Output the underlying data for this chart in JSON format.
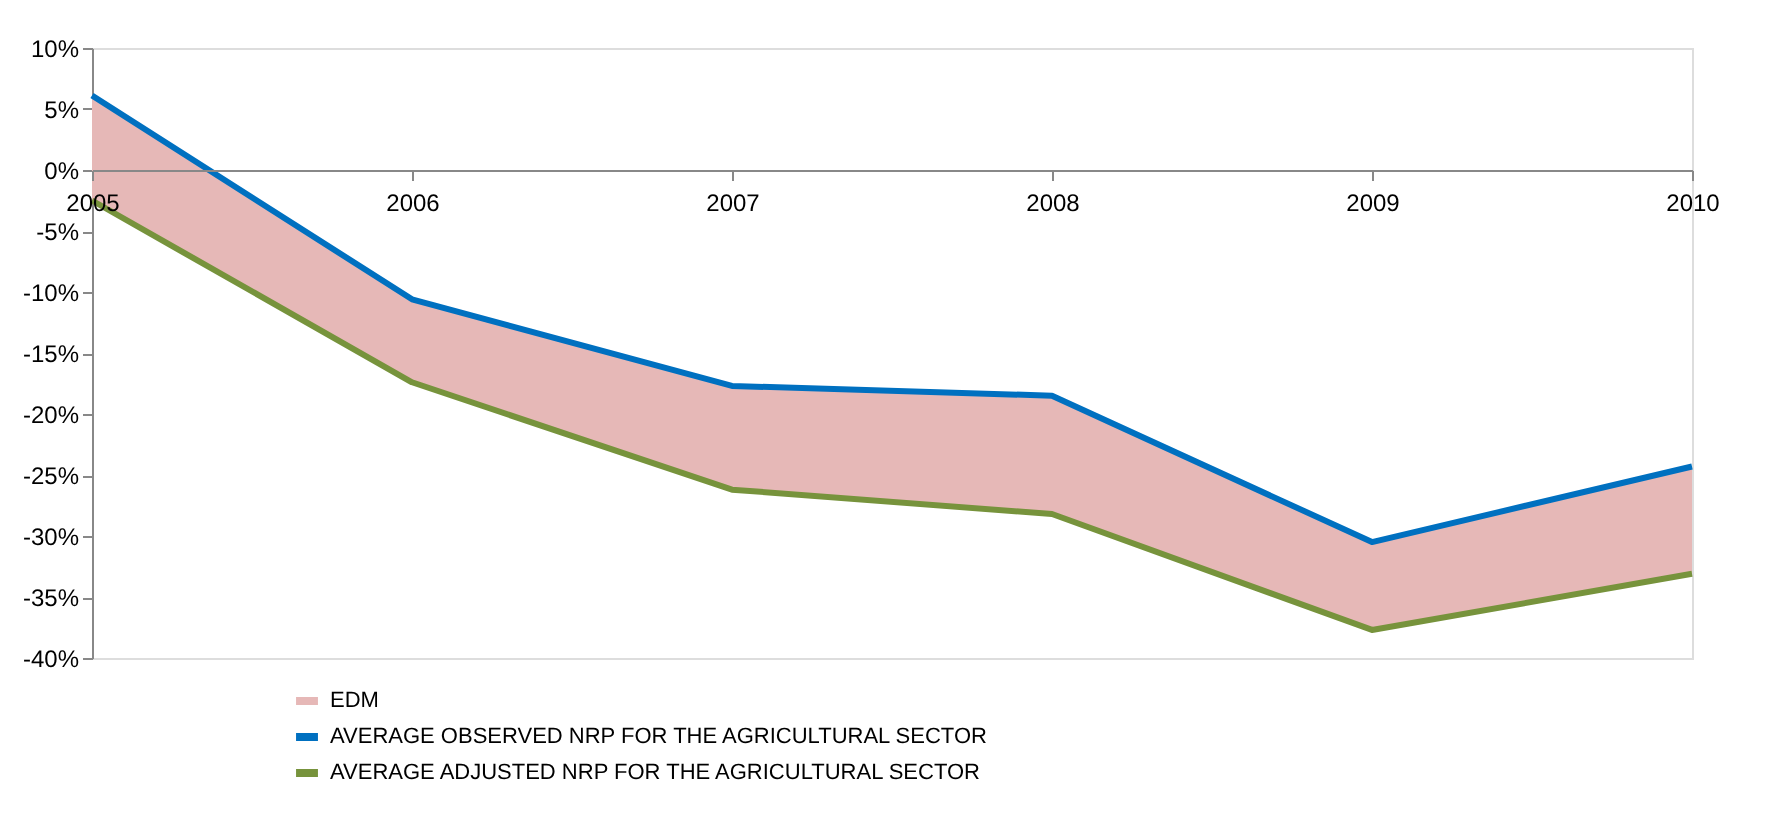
{
  "chart_data": {
    "type": "line",
    "categories": [
      "2005",
      "2006",
      "2007",
      "2008",
      "2009",
      "2010"
    ],
    "series": [
      {
        "name": "EDM",
        "color": "#e6b8b7",
        "lower": [
          -2.5,
          -17.4,
          -26.2,
          -28.2,
          -37.7,
          -33.1
        ],
        "upper": [
          6.1,
          -10.6,
          -17.7,
          -18.5,
          -30.5,
          -24.3
        ],
        "values": [
          null,
          null,
          null,
          null,
          null,
          null
        ]
      },
      {
        "name": "AVERAGE OBSERVED NRP FOR THE AGRICULTURAL SECTOR",
        "color": "#0070c0",
        "values": [
          6.1,
          -10.6,
          -17.7,
          -18.5,
          -30.5,
          -24.3
        ]
      },
      {
        "name": "AVERAGE ADJUSTED NRP FOR THE AGRICULTURAL SECTOR",
        "color": "#77933c",
        "values": [
          -2.5,
          -17.4,
          -26.2,
          -28.2,
          -37.7,
          -33.1
        ]
      }
    ],
    "ylim": [
      -40,
      10
    ],
    "yticks": [
      {
        "value": 10,
        "label": "10%"
      },
      {
        "value": 5,
        "label": "5%"
      },
      {
        "value": 0,
        "label": "0%"
      },
      {
        "value": -5,
        "label": "-5%"
      },
      {
        "value": -10,
        "label": "-10%"
      },
      {
        "value": -15,
        "label": "-15%"
      },
      {
        "value": -20,
        "label": "-20%"
      },
      {
        "value": -25,
        "label": "-25%"
      },
      {
        "value": -30,
        "label": "-30%"
      },
      {
        "value": -35,
        "label": "-35%"
      },
      {
        "value": -40,
        "label": "-40%"
      }
    ],
    "grid": false,
    "legend": "bottom left",
    "marker": "none",
    "line_style": "solid"
  }
}
